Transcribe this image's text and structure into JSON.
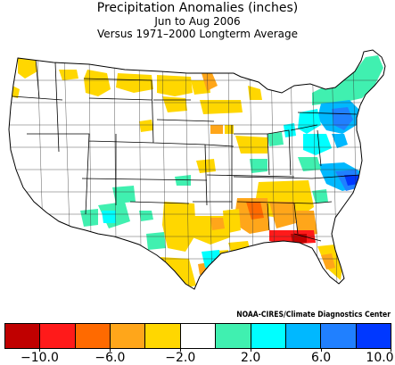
{
  "header": {
    "title": "Precipitation Anomalies (inches)",
    "subtitle": "Jun to Aug 2006",
    "baseline": "Versus 1971–2000 Longterm Average"
  },
  "credit": "NOAA-CIRES/Climate Diagnostics Center",
  "legend": {
    "colors": [
      "#c00000",
      "#ff1a1a",
      "#ff6a00",
      "#ffa61a",
      "#ffd700",
      "#ffffff",
      "#40f0b0",
      "#00ffff",
      "#00b8ff",
      "#2080ff",
      "#0038ff"
    ],
    "tick_labels": [
      "−10.0",
      "−6.0",
      "−2.0",
      "2.0",
      "6.0",
      "10.0"
    ]
  }
}
